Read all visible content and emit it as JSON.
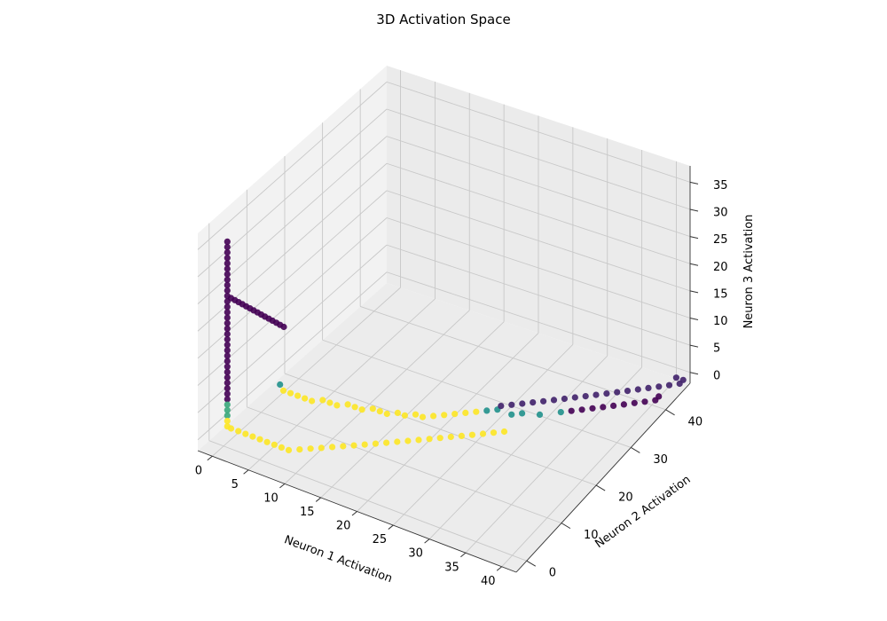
{
  "chart_data": {
    "type": "scatter3d",
    "title": "3D Activation Space",
    "xlabel": "Neuron 1 Activation",
    "ylabel": "Neuron 2 Activation",
    "zlabel": "Neuron 3 Activation",
    "xlim": [
      -2,
      42
    ],
    "ylim": [
      -3,
      47
    ],
    "zlim": [
      -2,
      38
    ],
    "xticks": [
      0,
      5,
      10,
      15,
      20,
      25,
      30,
      35,
      40
    ],
    "yticks": [
      0,
      10,
      20,
      30,
      40
    ],
    "zticks": [
      0,
      5,
      10,
      15,
      20,
      25,
      30,
      35
    ],
    "grid": true,
    "colormap": "viridis",
    "colors": {
      "pane_floor": "#ececec",
      "pane_left": "#f2f2f2",
      "pane_back": "#ebebeb",
      "grid": "#c8c8c8",
      "viridis": [
        "#440154",
        "#3b528b",
        "#21918c",
        "#5ec962",
        "#fde725"
      ]
    },
    "series": [
      {
        "color_value": 0.0,
        "points": [
          [
            0,
            1,
            35
          ],
          [
            0,
            1,
            34
          ],
          [
            0,
            1,
            33
          ],
          [
            0,
            1,
            32
          ],
          [
            0,
            1,
            31
          ],
          [
            0,
            1,
            30
          ],
          [
            0,
            1,
            29
          ],
          [
            0,
            1,
            28
          ],
          [
            0,
            1,
            27
          ],
          [
            0,
            1,
            26
          ],
          [
            0,
            1,
            25
          ],
          [
            0,
            1,
            24
          ],
          [
            0,
            1,
            23
          ],
          [
            0,
            1,
            22
          ],
          [
            0,
            1,
            21
          ],
          [
            0,
            1,
            20
          ],
          [
            0,
            1,
            19
          ],
          [
            0,
            1,
            18
          ],
          [
            0,
            1,
            17
          ],
          [
            0,
            1,
            16
          ],
          [
            0,
            1,
            15
          ],
          [
            0,
            1,
            14
          ],
          [
            0,
            1,
            13
          ],
          [
            0,
            1,
            12
          ],
          [
            0,
            1,
            11
          ],
          [
            0,
            1,
            10
          ],
          [
            0,
            1,
            9
          ],
          [
            0,
            1,
            8
          ],
          [
            0,
            1,
            7
          ],
          [
            0,
            1,
            6
          ]
        ]
      },
      {
        "color_value": 0.0,
        "points": [
          [
            0,
            2,
            24
          ],
          [
            0,
            3,
            23
          ],
          [
            0,
            4,
            22
          ],
          [
            0,
            5,
            21
          ],
          [
            0,
            6,
            20
          ],
          [
            0,
            7,
            19
          ],
          [
            0,
            8,
            18
          ],
          [
            0,
            9,
            17
          ],
          [
            0,
            10,
            16
          ],
          [
            0,
            11,
            15
          ],
          [
            0,
            12,
            14
          ],
          [
            0,
            13,
            13
          ],
          [
            0,
            14,
            12
          ],
          [
            0,
            15,
            11
          ],
          [
            0,
            16,
            10
          ]
        ]
      },
      {
        "color_value": 0.6,
        "points": [
          [
            0,
            1,
            5
          ],
          [
            0,
            1,
            4
          ],
          [
            0,
            1,
            3
          ]
        ]
      },
      {
        "color_value": 1.0,
        "points": [
          [
            0,
            1,
            2
          ],
          [
            0,
            1,
            1
          ],
          [
            0,
            2,
            0
          ],
          [
            1,
            2,
            0
          ],
          [
            2,
            2,
            0
          ],
          [
            3,
            2,
            0
          ],
          [
            4,
            2,
            0
          ],
          [
            5,
            2,
            0
          ],
          [
            6,
            2,
            0
          ],
          [
            7,
            2,
            0
          ],
          [
            8,
            2,
            0
          ],
          [
            9,
            3,
            0
          ],
          [
            10,
            4,
            0
          ],
          [
            11,
            5,
            0
          ],
          [
            12,
            6,
            0
          ],
          [
            13,
            7,
            0
          ],
          [
            14,
            8,
            0
          ],
          [
            15,
            9,
            0
          ],
          [
            16,
            10,
            0
          ],
          [
            17,
            11,
            0
          ],
          [
            18,
            12,
            0
          ],
          [
            19,
            13,
            0
          ],
          [
            20,
            14,
            0
          ],
          [
            21,
            15,
            0
          ],
          [
            22,
            16,
            0
          ],
          [
            23,
            17,
            0
          ],
          [
            24,
            18,
            0
          ],
          [
            25,
            19,
            0
          ],
          [
            26,
            20,
            0
          ],
          [
            27,
            21,
            0
          ],
          [
            28,
            22,
            0
          ]
        ]
      },
      {
        "color_value": 1.0,
        "points": [
          [
            1,
            14,
            0
          ],
          [
            2,
            14,
            0
          ],
          [
            3,
            14,
            0
          ],
          [
            4,
            14,
            0
          ],
          [
            5,
            14,
            0
          ],
          [
            6,
            15,
            0
          ],
          [
            7,
            15,
            0
          ],
          [
            8,
            15,
            0
          ],
          [
            9,
            16,
            0
          ],
          [
            10,
            16,
            0
          ],
          [
            11,
            16,
            0
          ],
          [
            12,
            17,
            0
          ],
          [
            13,
            17,
            0
          ],
          [
            14,
            17,
            0
          ],
          [
            15,
            18,
            0
          ],
          [
            16,
            18,
            0
          ],
          [
            17,
            19,
            0
          ],
          [
            18,
            19,
            0
          ],
          [
            19,
            20,
            0
          ],
          [
            20,
            21,
            0
          ],
          [
            21,
            22,
            0
          ],
          [
            22,
            23,
            0
          ],
          [
            23,
            24,
            0
          ]
        ]
      },
      {
        "color_value": 0.5,
        "points": [
          [
            0,
            15,
            0
          ],
          [
            24,
            25,
            0
          ],
          [
            25,
            26,
            0
          ],
          [
            27,
            26,
            0
          ],
          [
            28,
            27,
            0
          ],
          [
            30,
            28,
            0
          ],
          [
            32,
            30,
            0
          ]
        ]
      },
      {
        "color_value": 0.1,
        "points": [
          [
            25,
            27,
            0
          ],
          [
            26,
            28,
            0
          ],
          [
            27,
            29,
            0
          ],
          [
            28,
            30,
            0
          ],
          [
            29,
            31,
            0
          ],
          [
            30,
            32,
            0
          ],
          [
            31,
            33,
            0
          ],
          [
            32,
            34,
            0
          ],
          [
            33,
            35,
            0
          ],
          [
            34,
            36,
            0
          ],
          [
            35,
            37,
            0
          ],
          [
            36,
            38,
            0
          ],
          [
            37,
            39,
            0
          ],
          [
            38,
            40,
            0
          ],
          [
            39,
            41,
            0
          ],
          [
            40,
            42,
            0
          ],
          [
            41,
            43,
            0
          ],
          [
            42,
            44,
            0
          ],
          [
            42,
            45,
            0
          ],
          [
            41,
            45,
            0
          ]
        ]
      },
      {
        "color_value": 0.0,
        "points": [
          [
            33,
            31,
            0
          ],
          [
            34,
            32,
            0
          ],
          [
            35,
            33,
            0
          ],
          [
            36,
            34,
            0
          ],
          [
            37,
            35,
            0
          ],
          [
            38,
            36,
            0
          ],
          [
            39,
            37,
            0
          ],
          [
            40,
            38,
            0
          ],
          [
            41,
            39,
            0
          ],
          [
            41,
            40,
            0
          ]
        ]
      }
    ]
  }
}
